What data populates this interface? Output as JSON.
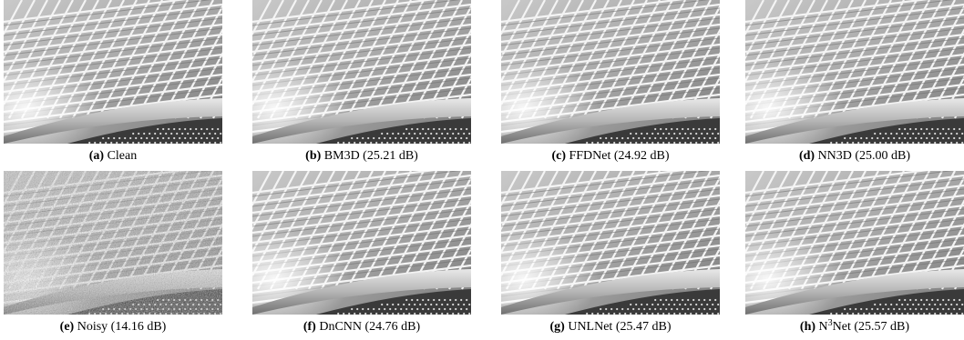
{
  "panels": [
    {
      "letter": "(a)",
      "label": "Clean",
      "noisy": false
    },
    {
      "letter": "(b)",
      "label": "BM3D (25.21 dB)",
      "noisy": false
    },
    {
      "letter": "(c)",
      "label": "FFDNet (24.92 dB)",
      "noisy": false
    },
    {
      "letter": "(d)",
      "label": "NN3D (25.00 dB)",
      "noisy": false
    },
    {
      "letter": "(e)",
      "label": "Noisy (14.16 dB)",
      "noisy": true
    },
    {
      "letter": "(f)",
      "label": "DnCNN (24.76 dB)",
      "noisy": false
    },
    {
      "letter": "(g)",
      "label": "UNLNet (25.47 dB)",
      "noisy": false
    },
    {
      "letter": "(h)",
      "label_prefix": "N",
      "label_sup": "3",
      "label_suffix": "Net (25.57 dB)",
      "noisy": false
    }
  ]
}
